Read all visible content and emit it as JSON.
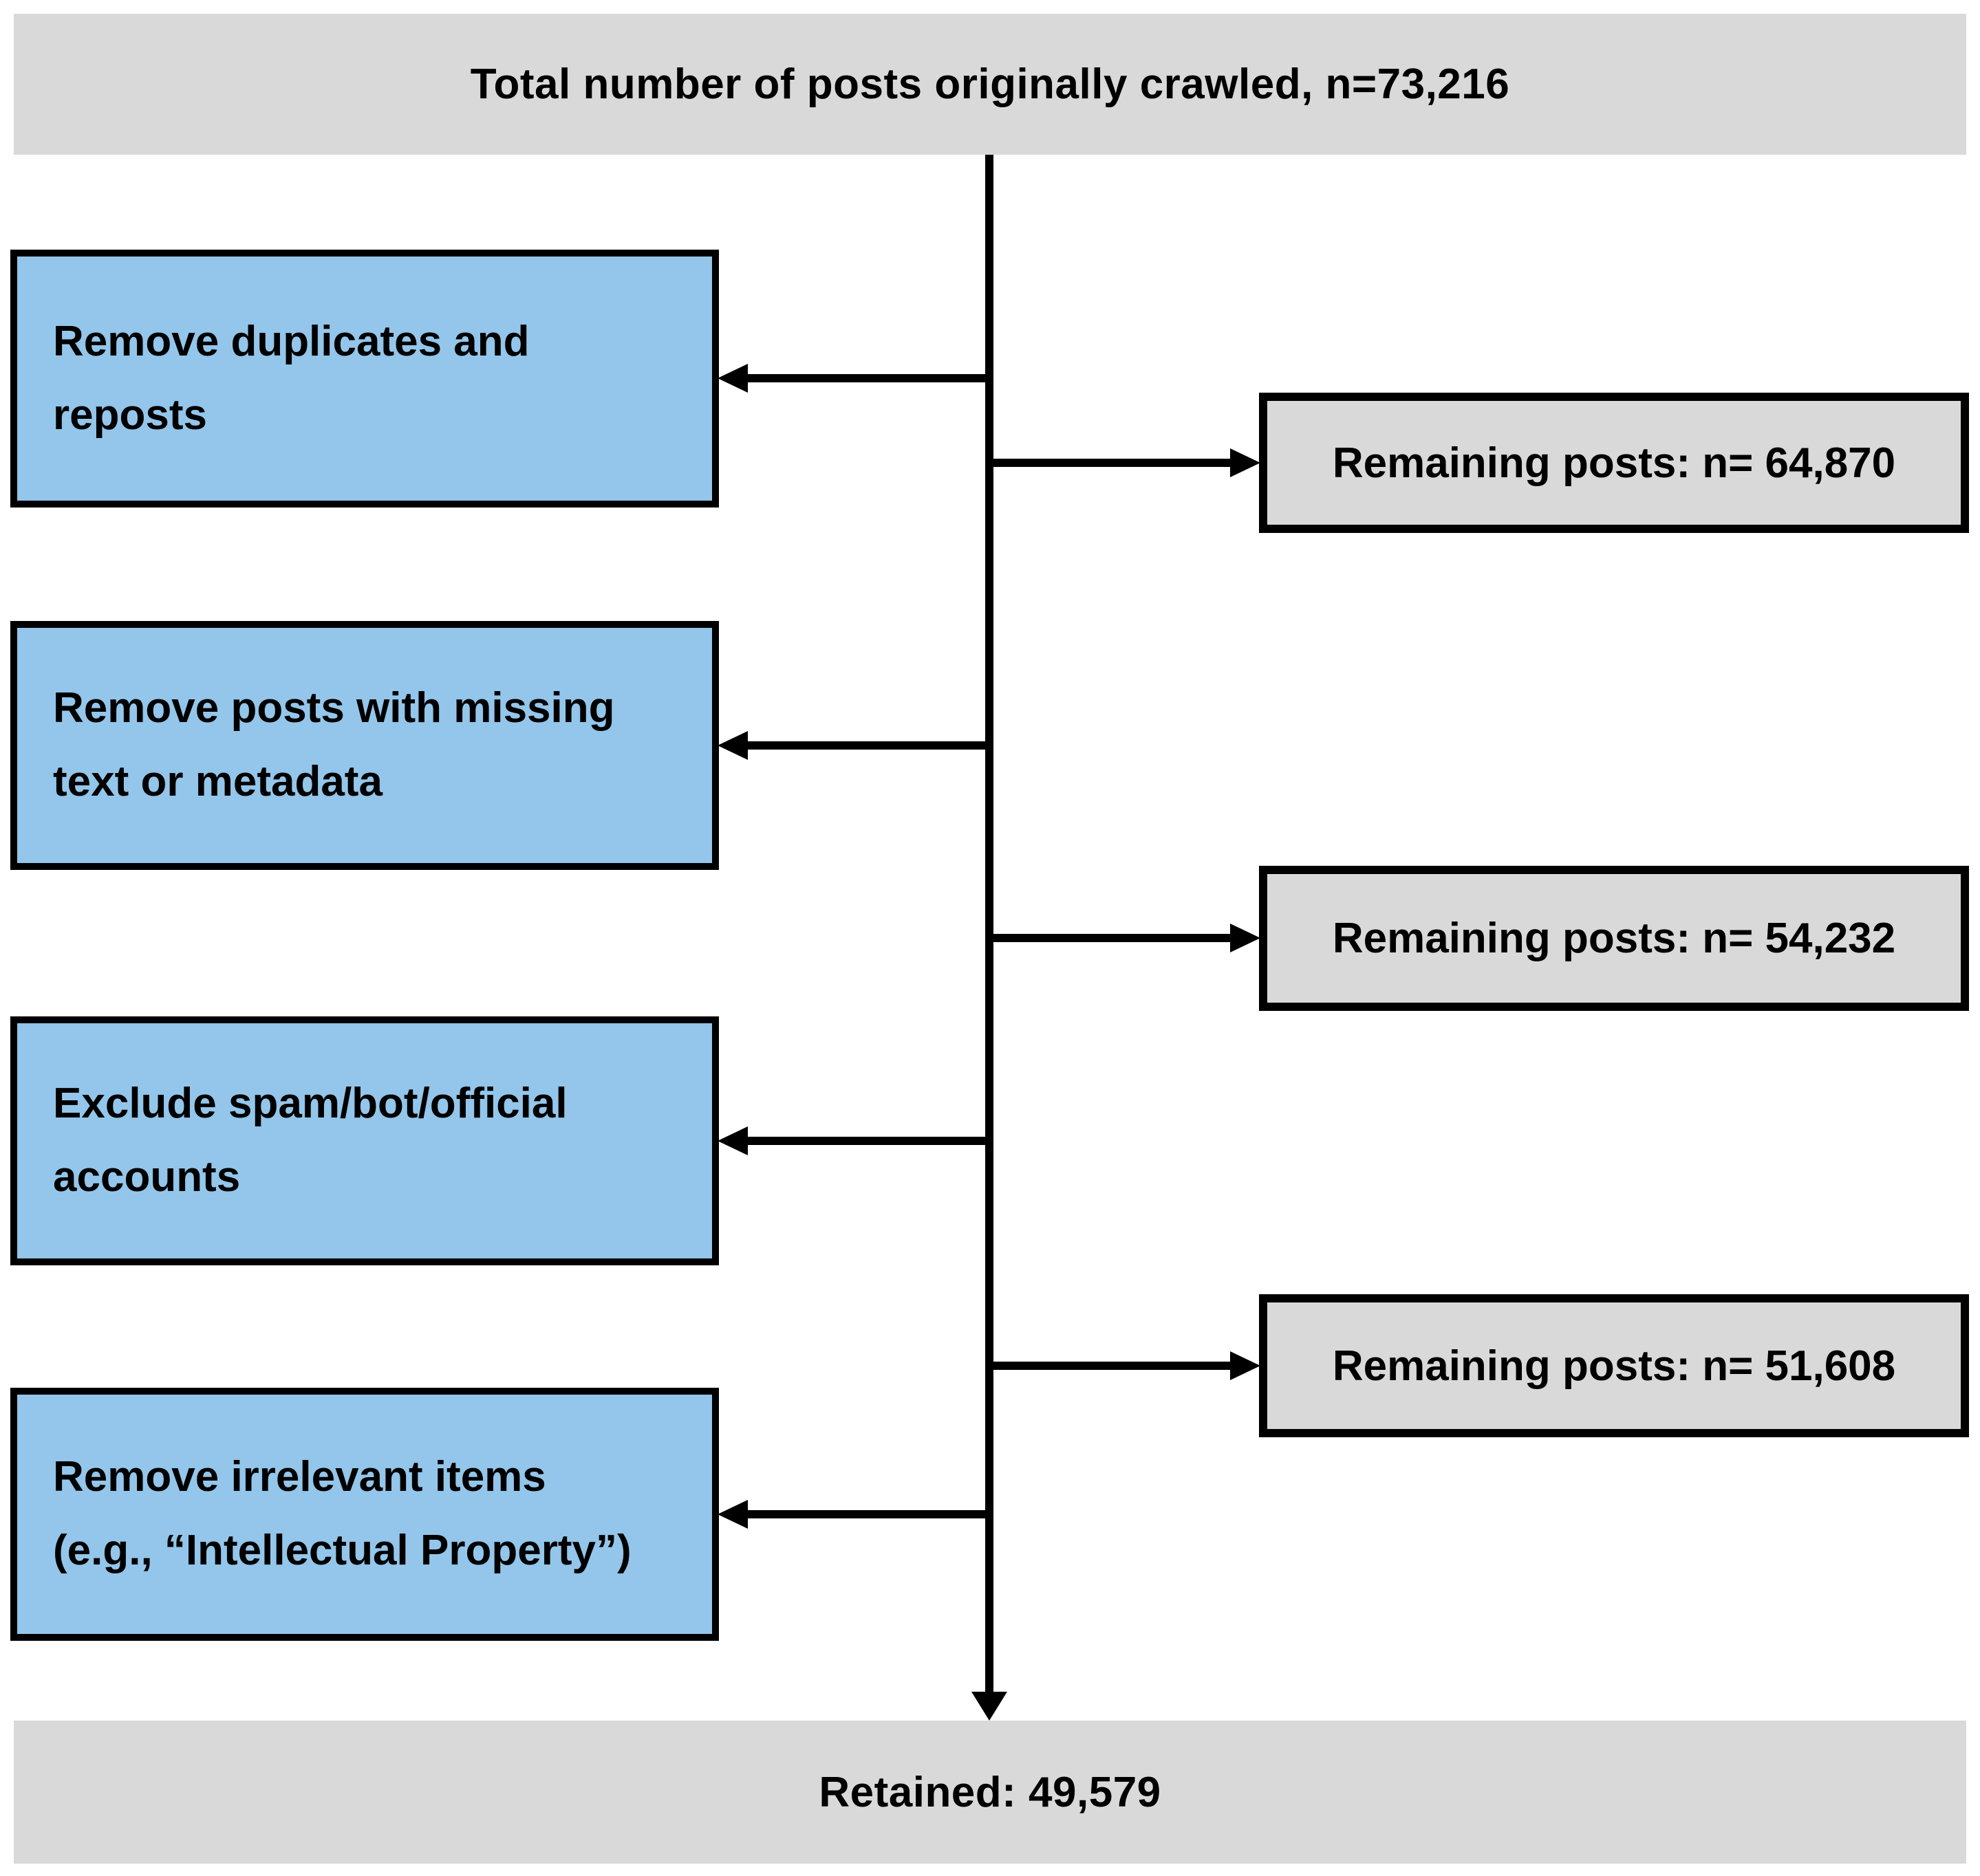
{
  "flow": {
    "total": {
      "label": "Total number of posts originally crawled, n=73,216"
    },
    "steps": [
      {
        "label": "Remove duplicates and\nreposts"
      },
      {
        "label": "Remove posts with missing\ntext or metadata"
      },
      {
        "label": "Exclude spam/bot/official\naccounts"
      },
      {
        "label": "Remove irrelevant items\n(e.g., “Intellectual Property”)"
      }
    ],
    "results": [
      {
        "label": "Remaining posts: n= 64,870"
      },
      {
        "label": "Remaining posts: n= 54,232"
      },
      {
        "label": "Remaining posts: n= 51,608"
      }
    ],
    "retained": {
      "label": "Retained: 49,579"
    }
  },
  "colors": {
    "process_fill": "#93c6ea",
    "result_fill": "#d9d9d9",
    "banner_fill": "#d9d9d9",
    "line": "#000000",
    "text": "#000000",
    "background": "#ffffff"
  }
}
